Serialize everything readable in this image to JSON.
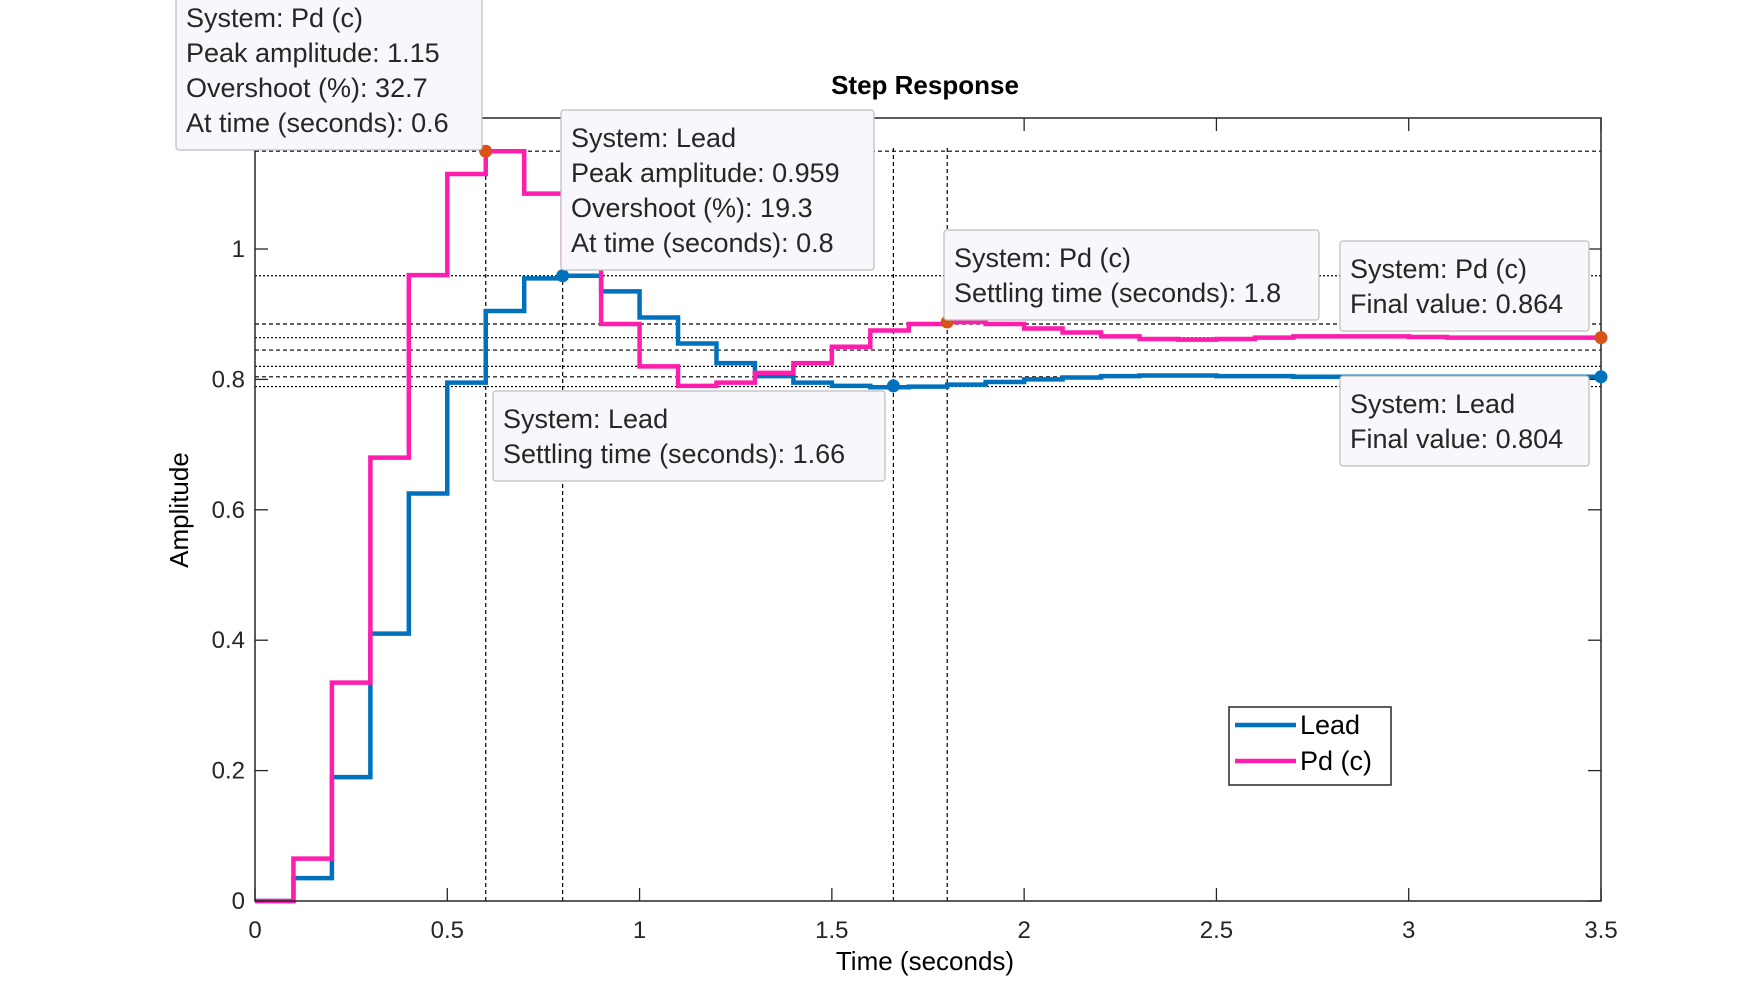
{
  "chart_data": {
    "type": "line",
    "subtype": "stairs",
    "title": "Step Response",
    "xlabel": "Time (seconds)",
    "ylabel": "Amplitude",
    "xlim": [
      0,
      3.5
    ],
    "ylim": [
      0,
      1.2
    ],
    "xticks": [
      0,
      0.5,
      1,
      1.5,
      2,
      2.5,
      3,
      3.5
    ],
    "xtick_labels": [
      "0",
      "0.5",
      "1",
      "1.5",
      "2",
      "2.5",
      "3",
      "3.5"
    ],
    "yticks": [
      0,
      0.2,
      0.4,
      0.6,
      0.8,
      1
    ],
    "ytick_labels": [
      "0",
      "0.2",
      "0.4",
      "0.6",
      "0.8",
      "1"
    ],
    "grid": false,
    "legend_position": "bottom-right",
    "sample_time": 0.1,
    "series": [
      {
        "name": "Lead",
        "color": "#0072BD",
        "values": [
          0,
          0.035,
          0.19,
          0.41,
          0.625,
          0.795,
          0.905,
          0.955,
          0.959,
          0.935,
          0.895,
          0.855,
          0.825,
          0.805,
          0.795,
          0.79,
          0.788,
          0.789,
          0.792,
          0.796,
          0.8,
          0.803,
          0.805,
          0.806,
          0.806,
          0.805,
          0.805,
          0.804,
          0.804,
          0.804,
          0.804,
          0.804,
          0.804,
          0.804,
          0.804,
          0.804
        ]
      },
      {
        "name": "Pd (c)",
        "color": "#FF1DAE",
        "values": [
          0,
          0.065,
          0.335,
          0.68,
          0.96,
          1.115,
          1.15,
          1.085,
          0.98,
          0.885,
          0.82,
          0.79,
          0.795,
          0.81,
          0.825,
          0.85,
          0.875,
          0.885,
          0.888,
          0.885,
          0.878,
          0.872,
          0.866,
          0.862,
          0.861,
          0.862,
          0.864,
          0.866,
          0.866,
          0.866,
          0.865,
          0.864,
          0.864,
          0.864,
          0.864,
          0.864
        ]
      }
    ],
    "datatips": [
      {
        "id": "pd-peak",
        "series": "Pd (c)",
        "x": 0.6,
        "y": 1.15,
        "lines": [
          "System: Pd (c)",
          "Peak amplitude: 1.15",
          "Overshoot (%): 32.7",
          "At time (seconds): 0.6"
        ]
      },
      {
        "id": "lead-peak",
        "series": "Lead",
        "x": 0.8,
        "y": 0.959,
        "lines": [
          "System: Lead",
          "Peak amplitude: 0.959",
          "Overshoot (%): 19.3",
          "At time (seconds): 0.8"
        ]
      },
      {
        "id": "pd-settling",
        "series": "Pd (c)",
        "x": 1.8,
        "y": 0.888,
        "lines": [
          "System: Pd (c)",
          "Settling time (seconds): 1.8"
        ]
      },
      {
        "id": "pd-final",
        "series": "Pd (c)",
        "x": 3.5,
        "y": 0.864,
        "lines": [
          "System: Pd (c)",
          "Final value: 0.864"
        ]
      },
      {
        "id": "lead-settling",
        "series": "Lead",
        "x": 1.66,
        "y": 0.79,
        "lines": [
          "System: Lead",
          "Settling time (seconds): 1.66"
        ]
      },
      {
        "id": "lead-final",
        "series": "Lead",
        "x": 3.5,
        "y": 0.804,
        "lines": [
          "System: Lead",
          "Final value: 0.804"
        ]
      }
    ],
    "reference_lines": {
      "horizontal": [
        1.15,
        0.959,
        0.885,
        0.864,
        0.845,
        0.82,
        0.804,
        0.789
      ],
      "vertical": [
        0.6,
        0.8,
        1.66,
        1.8
      ]
    },
    "marker_color": "#D95319"
  }
}
